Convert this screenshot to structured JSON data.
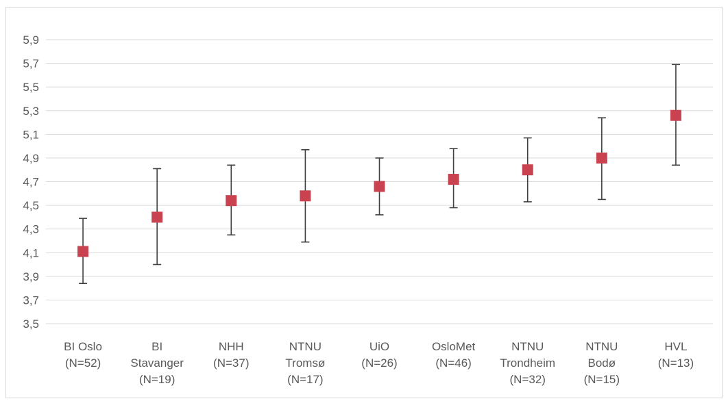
{
  "chart_data": {
    "type": "scatter",
    "title": "",
    "xlabel": "",
    "ylabel": "",
    "ylim": [
      3.5,
      5.9
    ],
    "yticks": [
      "3,5",
      "3,7",
      "3,9",
      "4,1",
      "4,3",
      "4,5",
      "4,7",
      "4,9",
      "5,1",
      "5,3",
      "5,5",
      "5,7",
      "5,9"
    ],
    "grid": true,
    "legend": "none",
    "marker_color": "#c9424f",
    "errorbar_color": "#404040",
    "categories": [
      {
        "lines": [
          "BI Oslo",
          "(N=52)"
        ]
      },
      {
        "lines": [
          "BI",
          "Stavanger",
          "(N=19)"
        ]
      },
      {
        "lines": [
          "NHH",
          "(N=37)"
        ]
      },
      {
        "lines": [
          "NTNU",
          "Tromsø",
          "(N=17)"
        ]
      },
      {
        "lines": [
          "UiO",
          "(N=26)"
        ]
      },
      {
        "lines": [
          "OsloMet",
          "(N=46)"
        ]
      },
      {
        "lines": [
          "NTNU",
          "Trondheim",
          "(N=32)"
        ]
      },
      {
        "lines": [
          "NTNU",
          "Bodø",
          "(N=15)"
        ]
      },
      {
        "lines": [
          "HVL",
          "(N=13)"
        ]
      }
    ],
    "values": [
      4.11,
      4.4,
      4.54,
      4.58,
      4.66,
      4.72,
      4.8,
      4.9,
      5.26
    ],
    "error_low": [
      3.84,
      4.0,
      4.25,
      4.19,
      4.42,
      4.48,
      4.53,
      4.55,
      4.84
    ],
    "error_high": [
      4.39,
      4.81,
      4.84,
      4.97,
      4.9,
      4.98,
      5.07,
      5.24,
      5.69
    ]
  }
}
